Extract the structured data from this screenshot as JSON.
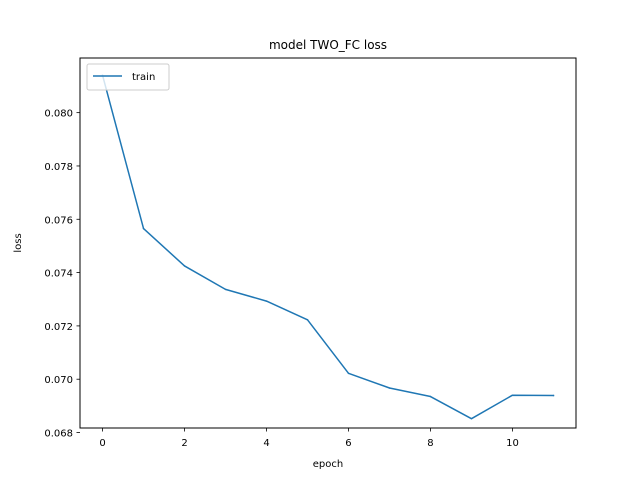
{
  "chart_data": {
    "type": "line",
    "title": "model TWO_FC loss",
    "xlabel": "epoch",
    "ylabel": "loss",
    "xlim": [
      -0.55,
      11.55
    ],
    "ylim": [
      0.06817,
      0.08205
    ],
    "xticks": [
      0,
      2,
      4,
      6,
      8,
      10
    ],
    "yticks": [
      0.068,
      0.07,
      0.072,
      0.074,
      0.076,
      0.078,
      0.08
    ],
    "ytick_labels": [
      "0.068",
      "0.070",
      "0.072",
      "0.074",
      "0.076",
      "0.078",
      "0.080"
    ],
    "grid": false,
    "legend_position": "upper left",
    "series": [
      {
        "name": "train",
        "color": "#1f77b4",
        "x": [
          0,
          1,
          2,
          3,
          4,
          5,
          6,
          7,
          8,
          9,
          10,
          11
        ],
        "values": [
          0.0814,
          0.07565,
          0.07425,
          0.07337,
          0.07293,
          0.07223,
          0.07022,
          0.06967,
          0.06935,
          0.06852,
          0.0694,
          0.06939
        ]
      }
    ]
  }
}
